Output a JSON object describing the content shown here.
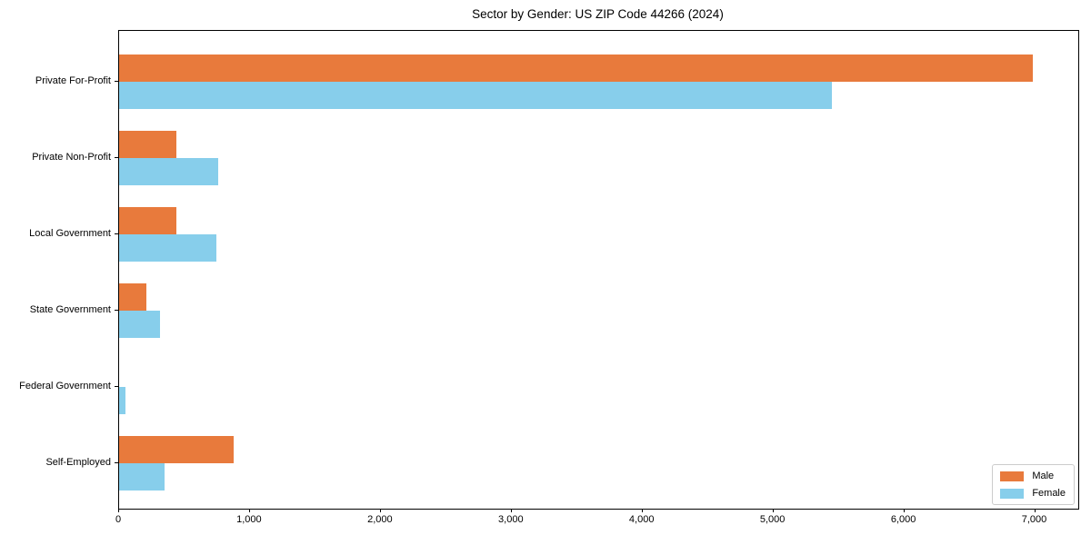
{
  "chart_data": {
    "type": "bar",
    "orientation": "horizontal",
    "title": "Sector by Gender: US ZIP Code 44266 (2024)",
    "categories": [
      "Private For-Profit",
      "Private Non-Profit",
      "Local Government",
      "State Government",
      "Federal Government",
      "Self-Employed"
    ],
    "series": [
      {
        "name": "Male",
        "color": "#e87a3c",
        "values": [
          6980,
          440,
          435,
          210,
          0,
          875
        ]
      },
      {
        "name": "Female",
        "color": "#87ceeb",
        "values": [
          5450,
          760,
          740,
          310,
          48,
          350
        ]
      }
    ],
    "xlim": [
      0,
      7330
    ],
    "xticks": [
      0,
      1000,
      2000,
      3000,
      4000,
      5000,
      6000,
      7000
    ],
    "xtick_labels": [
      "0",
      "1,000",
      "2,000",
      "3,000",
      "4,000",
      "5,000",
      "6,000",
      "7,000"
    ],
    "xlabel": "",
    "ylabel": "",
    "grid": false,
    "legend_position": "lower right",
    "spine_color": "#000000",
    "background_color": "#ffffff"
  }
}
